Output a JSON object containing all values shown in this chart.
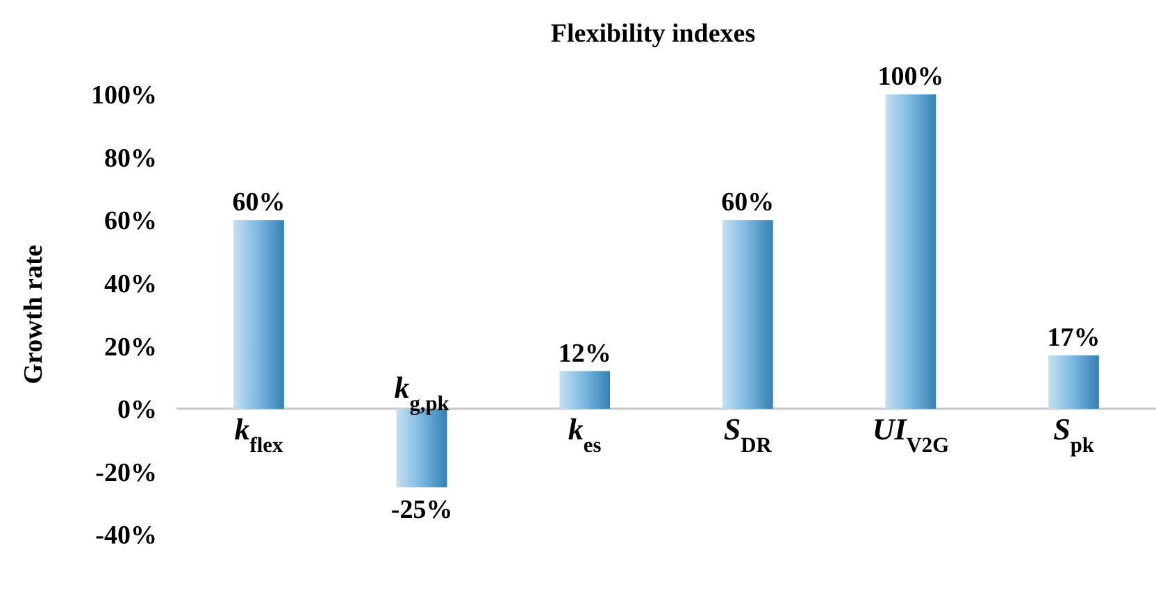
{
  "chart_data": {
    "type": "bar",
    "title": "Flexibility indexes",
    "ylabel": "Growth rate",
    "categories": [
      "k$_{flex}$",
      "k$_{g,pk}$",
      "k$_{es}$",
      "S$_{DR}$",
      "UI$_{V2G}$",
      "S$_{pk}$"
    ],
    "values": [
      60,
      -25,
      12,
      60,
      100,
      17
    ],
    "color": "#3d96d4",
    "value_labels": [
      "60%",
      "-25%",
      "12%",
      "60%",
      "100%",
      "17%"
    ],
    "ylim": [
      -40,
      100
    ],
    "yticks": [
      {
        "value": -40,
        "label": "-40%"
      },
      {
        "value": -20,
        "label": "-20%"
      },
      {
        "value": 0,
        "label": "0%"
      },
      {
        "value": 20,
        "label": "20%"
      },
      {
        "value": 40,
        "label": "40%"
      },
      {
        "value": 60,
        "label": "60%"
      },
      {
        "value": 80,
        "label": "80%"
      },
      {
        "value": 100,
        "label": "100%"
      }
    ],
    "grid": false
  }
}
